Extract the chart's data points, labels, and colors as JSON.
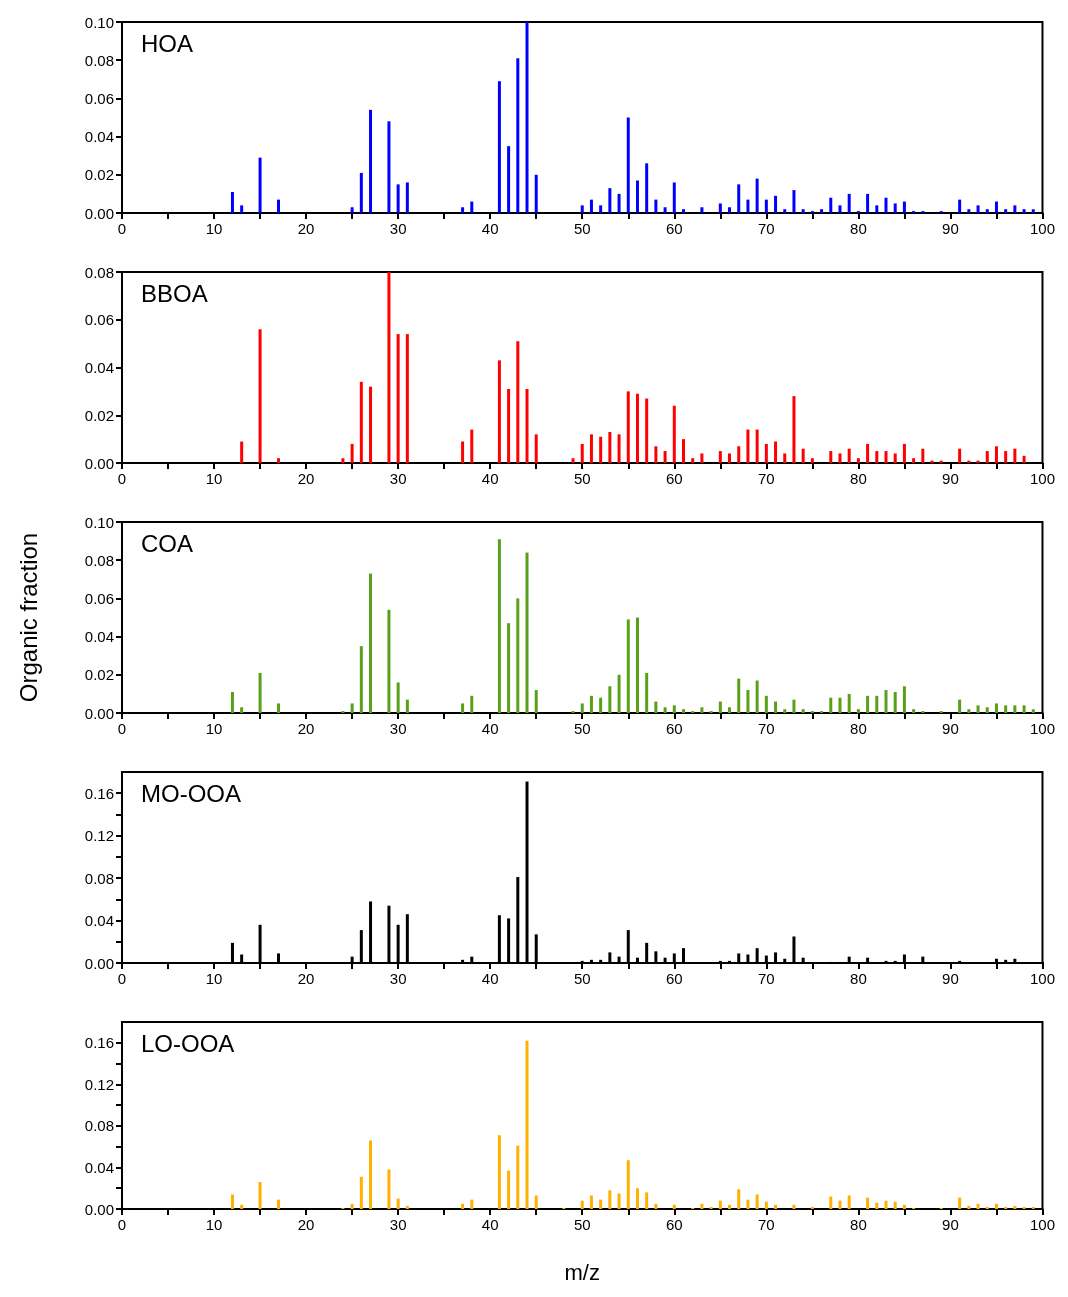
{
  "chart_data": [
    {
      "type": "bar",
      "title": "HOA",
      "color": "#0000ff",
      "xlim": [
        0,
        100
      ],
      "xticks": [
        0,
        {
          "value": 5,
          "label": null
        },
        10,
        {
          "value": 15,
          "label": null
        },
        20,
        {
          "value": 25,
          "label": null
        },
        30,
        {
          "value": 35,
          "label": null
        },
        40,
        {
          "value": 45,
          "label": null
        },
        50,
        {
          "value": 55,
          "label": null
        },
        60,
        {
          "value": 65,
          "label": null
        },
        70,
        {
          "value": 75,
          "label": null
        },
        80,
        {
          "value": 85,
          "label": null
        },
        90,
        {
          "value": 95,
          "label": null
        },
        100
      ],
      "ylim": [
        0,
        0.1
      ],
      "yticks": [
        {
          "value": 0,
          "label": "0.00"
        },
        {
          "value": 0.02,
          "label": "0.02"
        },
        {
          "value": 0.04,
          "label": "0.04"
        },
        {
          "value": 0.06,
          "label": "0.06"
        },
        {
          "value": 0.08,
          "label": "0.08"
        },
        {
          "value": 0.1,
          "label": "0.10"
        }
      ],
      "x": [
        12,
        13,
        15,
        17,
        25,
        26,
        27,
        29,
        30,
        31,
        37,
        38,
        41,
        42,
        43,
        44,
        45,
        50,
        51,
        52,
        53,
        54,
        55,
        56,
        57,
        58,
        59,
        60,
        61,
        63,
        65,
        66,
        67,
        68,
        69,
        70,
        71,
        72,
        73,
        74,
        75,
        76,
        77,
        78,
        79,
        80,
        81,
        82,
        83,
        84,
        85,
        86,
        87,
        89,
        91,
        92,
        93,
        94,
        95,
        96,
        97,
        98,
        99
      ],
      "values": [
        0.011,
        0.004,
        0.029,
        0.007,
        0.003,
        0.021,
        0.054,
        0.048,
        0.015,
        0.016,
        0.003,
        0.006,
        0.069,
        0.035,
        0.081,
        0.1,
        0.02,
        0.004,
        0.007,
        0.004,
        0.013,
        0.01,
        0.05,
        0.017,
        0.026,
        0.007,
        0.003,
        0.016,
        0.002,
        0.003,
        0.005,
        0.003,
        0.015,
        0.007,
        0.018,
        0.007,
        0.009,
        0.002,
        0.012,
        0.002,
        0.001,
        0.002,
        0.008,
        0.004,
        0.01,
        0.001,
        0.01,
        0.004,
        0.008,
        0.005,
        0.006,
        0.001,
        0.001,
        0.001,
        0.007,
        0.002,
        0.004,
        0.002,
        0.006,
        0.002,
        0.004,
        0.002,
        0.002
      ]
    },
    {
      "type": "bar",
      "title": "BBOA",
      "color": "#ff0000",
      "xlim": [
        0,
        100
      ],
      "xticks": [
        0,
        {
          "value": 5,
          "label": null
        },
        10,
        {
          "value": 15,
          "label": null
        },
        20,
        {
          "value": 25,
          "label": null
        },
        30,
        {
          "value": 35,
          "label": null
        },
        40,
        {
          "value": 45,
          "label": null
        },
        50,
        {
          "value": 55,
          "label": null
        },
        60,
        {
          "value": 65,
          "label": null
        },
        70,
        {
          "value": 75,
          "label": null
        },
        80,
        {
          "value": 85,
          "label": null
        },
        90,
        {
          "value": 95,
          "label": null
        },
        100
      ],
      "ylim": [
        0,
        0.08
      ],
      "yticks": [
        {
          "value": 0,
          "label": "0.00"
        },
        {
          "value": 0.02,
          "label": "0.02"
        },
        {
          "value": 0.04,
          "label": "0.04"
        },
        {
          "value": 0.06,
          "label": "0.06"
        },
        {
          "value": 0.08,
          "label": "0.08"
        }
      ],
      "x": [
        13,
        15,
        17,
        24,
        25,
        26,
        27,
        29,
        30,
        31,
        37,
        38,
        41,
        42,
        43,
        44,
        45,
        49,
        50,
        51,
        52,
        53,
        54,
        55,
        56,
        57,
        58,
        59,
        60,
        61,
        62,
        63,
        65,
        66,
        67,
        68,
        69,
        70,
        71,
        72,
        73,
        74,
        75,
        77,
        78,
        79,
        80,
        81,
        82,
        83,
        84,
        85,
        86,
        87,
        88,
        89,
        91,
        92,
        93,
        94,
        95,
        96,
        97,
        98
      ],
      "values": [
        0.009,
        0.056,
        0.002,
        0.002,
        0.008,
        0.034,
        0.032,
        0.08,
        0.054,
        0.054,
        0.009,
        0.014,
        0.043,
        0.031,
        0.051,
        0.031,
        0.012,
        0.002,
        0.008,
        0.012,
        0.011,
        0.013,
        0.012,
        0.03,
        0.029,
        0.027,
        0.007,
        0.005,
        0.024,
        0.01,
        0.002,
        0.004,
        0.005,
        0.004,
        0.007,
        0.014,
        0.014,
        0.008,
        0.009,
        0.004,
        0.028,
        0.006,
        0.002,
        0.005,
        0.004,
        0.006,
        0.002,
        0.008,
        0.005,
        0.005,
        0.004,
        0.008,
        0.002,
        0.006,
        0.001,
        0.001,
        0.006,
        0.001,
        0.001,
        0.005,
        0.007,
        0.005,
        0.006,
        0.003
      ]
    },
    {
      "type": "bar",
      "title": "COA",
      "ylabel": "Organic fraction",
      "color": "#58a01a",
      "xlim": [
        0,
        100
      ],
      "xticks": [
        0,
        {
          "value": 5,
          "label": null
        },
        10,
        {
          "value": 15,
          "label": null
        },
        20,
        {
          "value": 25,
          "label": null
        },
        30,
        {
          "value": 35,
          "label": null
        },
        40,
        {
          "value": 45,
          "label": null
        },
        50,
        {
          "value": 55,
          "label": null
        },
        60,
        {
          "value": 65,
          "label": null
        },
        70,
        {
          "value": 75,
          "label": null
        },
        80,
        {
          "value": 85,
          "label": null
        },
        90,
        {
          "value": 95,
          "label": null
        },
        100
      ],
      "ylim": [
        0,
        0.1
      ],
      "yticks": [
        {
          "value": 0,
          "label": "0.00"
        },
        {
          "value": 0.02,
          "label": "0.02"
        },
        {
          "value": 0.04,
          "label": "0.04"
        },
        {
          "value": 0.06,
          "label": "0.06"
        },
        {
          "value": 0.08,
          "label": "0.08"
        },
        {
          "value": 0.1,
          "label": "0.10"
        }
      ],
      "x": [
        12,
        13,
        15,
        17,
        24,
        25,
        26,
        27,
        29,
        30,
        31,
        37,
        38,
        41,
        42,
        43,
        44,
        45,
        49,
        50,
        51,
        52,
        53,
        54,
        55,
        56,
        57,
        58,
        59,
        60,
        61,
        62,
        63,
        64,
        65,
        66,
        67,
        68,
        69,
        70,
        71,
        72,
        73,
        74,
        75,
        76,
        77,
        78,
        79,
        80,
        81,
        82,
        83,
        84,
        85,
        86,
        87,
        89,
        91,
        92,
        93,
        94,
        95,
        96,
        97,
        98,
        99
      ],
      "values": [
        0.011,
        0.003,
        0.021,
        0.005,
        0.001,
        0.005,
        0.035,
        0.073,
        0.054,
        0.016,
        0.007,
        0.005,
        0.009,
        0.091,
        0.047,
        0.06,
        0.084,
        0.012,
        0.001,
        0.005,
        0.009,
        0.008,
        0.014,
        0.02,
        0.049,
        0.05,
        0.021,
        0.006,
        0.003,
        0.004,
        0.002,
        0.001,
        0.003,
        0.001,
        0.006,
        0.003,
        0.018,
        0.012,
        0.017,
        0.009,
        0.006,
        0.002,
        0.007,
        0.002,
        0.001,
        0.001,
        0.008,
        0.008,
        0.01,
        0.002,
        0.009,
        0.009,
        0.012,
        0.011,
        0.014,
        0.002,
        0.001,
        0.001,
        0.007,
        0.002,
        0.004,
        0.003,
        0.005,
        0.004,
        0.004,
        0.004,
        0.002
      ]
    },
    {
      "type": "bar",
      "title": "MO-OOA",
      "color": "#000000",
      "xlim": [
        0,
        100
      ],
      "xticks": [
        0,
        {
          "value": 5,
          "label": null
        },
        10,
        {
          "value": 15,
          "label": null
        },
        20,
        {
          "value": 25,
          "label": null
        },
        30,
        {
          "value": 35,
          "label": null
        },
        40,
        {
          "value": 45,
          "label": null
        },
        50,
        {
          "value": 55,
          "label": null
        },
        60,
        {
          "value": 65,
          "label": null
        },
        70,
        {
          "value": 75,
          "label": null
        },
        80,
        {
          "value": 85,
          "label": null
        },
        90,
        {
          "value": 95,
          "label": null
        },
        100
      ],
      "ylim": [
        0,
        0.18
      ],
      "yticks": [
        {
          "value": 0,
          "label": "0.00"
        },
        {
          "value": 0.02,
          "label": null
        },
        {
          "value": 0.04,
          "label": "0.04"
        },
        {
          "value": 0.06,
          "label": null
        },
        {
          "value": 0.08,
          "label": "0.08"
        },
        {
          "value": 0.1,
          "label": null
        },
        {
          "value": 0.12,
          "label": "0.12"
        },
        {
          "value": 0.14,
          "label": null
        },
        {
          "value": 0.16,
          "label": "0.16"
        }
      ],
      "x": [
        12,
        13,
        15,
        17,
        25,
        26,
        27,
        29,
        30,
        31,
        37,
        38,
        41,
        42,
        43,
        44,
        45,
        50,
        51,
        52,
        53,
        54,
        55,
        56,
        57,
        58,
        59,
        60,
        61,
        65,
        66,
        67,
        68,
        69,
        70,
        71,
        72,
        73,
        74,
        77,
        78,
        79,
        81,
        83,
        84,
        85,
        87,
        91,
        95,
        96,
        97,
        100
      ],
      "values": [
        0.019,
        0.008,
        0.036,
        0.009,
        0.006,
        0.031,
        0.058,
        0.054,
        0.036,
        0.046,
        0.003,
        0.006,
        0.045,
        0.042,
        0.081,
        0.171,
        0.027,
        0.002,
        0.003,
        0.003,
        0.01,
        0.006,
        0.031,
        0.005,
        0.019,
        0.011,
        0.005,
        0.009,
        0.014,
        0.002,
        0.002,
        0.009,
        0.008,
        0.014,
        0.007,
        0.01,
        0.004,
        0.025,
        0.005,
        0.001,
        0.001,
        0.006,
        0.005,
        0.002,
        0.002,
        0.008,
        0.006,
        0.002,
        0.004,
        0.003,
        0.004,
        0.001
      ]
    },
    {
      "type": "bar",
      "title": "LO-OOA",
      "xlabel": "m/z",
      "color": "#ffb000",
      "xlim": [
        0,
        100
      ],
      "xticks": [
        0,
        {
          "value": 5,
          "label": null
        },
        10,
        {
          "value": 15,
          "label": null
        },
        20,
        {
          "value": 25,
          "label": null
        },
        30,
        {
          "value": 35,
          "label": null
        },
        40,
        {
          "value": 45,
          "label": null
        },
        50,
        {
          "value": 55,
          "label": null
        },
        60,
        {
          "value": 65,
          "label": null
        },
        70,
        {
          "value": 75,
          "label": null
        },
        80,
        {
          "value": 85,
          "label": null
        },
        90,
        {
          "value": 95,
          "label": null
        },
        100
      ],
      "ylim": [
        0,
        0.18
      ],
      "yticks": [
        {
          "value": 0,
          "label": "0.00"
        },
        {
          "value": 0.02,
          "label": null
        },
        {
          "value": 0.04,
          "label": "0.04"
        },
        {
          "value": 0.06,
          "label": null
        },
        {
          "value": 0.08,
          "label": "0.08"
        },
        {
          "value": 0.1,
          "label": null
        },
        {
          "value": 0.12,
          "label": "0.12"
        },
        {
          "value": 0.14,
          "label": null
        },
        {
          "value": 0.16,
          "label": "0.16"
        }
      ],
      "x": [
        12,
        13,
        15,
        17,
        24,
        25,
        26,
        27,
        29,
        30,
        31,
        37,
        38,
        41,
        42,
        43,
        44,
        45,
        48,
        50,
        51,
        52,
        53,
        54,
        55,
        56,
        57,
        58,
        60,
        62,
        63,
        64,
        65,
        66,
        67,
        68,
        69,
        70,
        71,
        73,
        75,
        77,
        78,
        79,
        81,
        82,
        83,
        84,
        85,
        86,
        89,
        91,
        92,
        93,
        94,
        95,
        96,
        97,
        98,
        99
      ],
      "values": [
        0.014,
        0.004,
        0.026,
        0.009,
        0.001,
        0.005,
        0.031,
        0.066,
        0.038,
        0.01,
        0.003,
        0.005,
        0.009,
        0.071,
        0.037,
        0.061,
        0.162,
        0.013,
        0.001,
        0.008,
        0.013,
        0.009,
        0.018,
        0.015,
        0.047,
        0.02,
        0.016,
        0.005,
        0.004,
        0.001,
        0.005,
        0.002,
        0.008,
        0.004,
        0.019,
        0.009,
        0.014,
        0.007,
        0.004,
        0.004,
        0.002,
        0.012,
        0.008,
        0.013,
        0.011,
        0.006,
        0.008,
        0.007,
        0.004,
        0.001,
        0.001,
        0.011,
        0.003,
        0.005,
        0.002,
        0.005,
        0.002,
        0.003,
        0.002,
        0.002
      ]
    }
  ]
}
